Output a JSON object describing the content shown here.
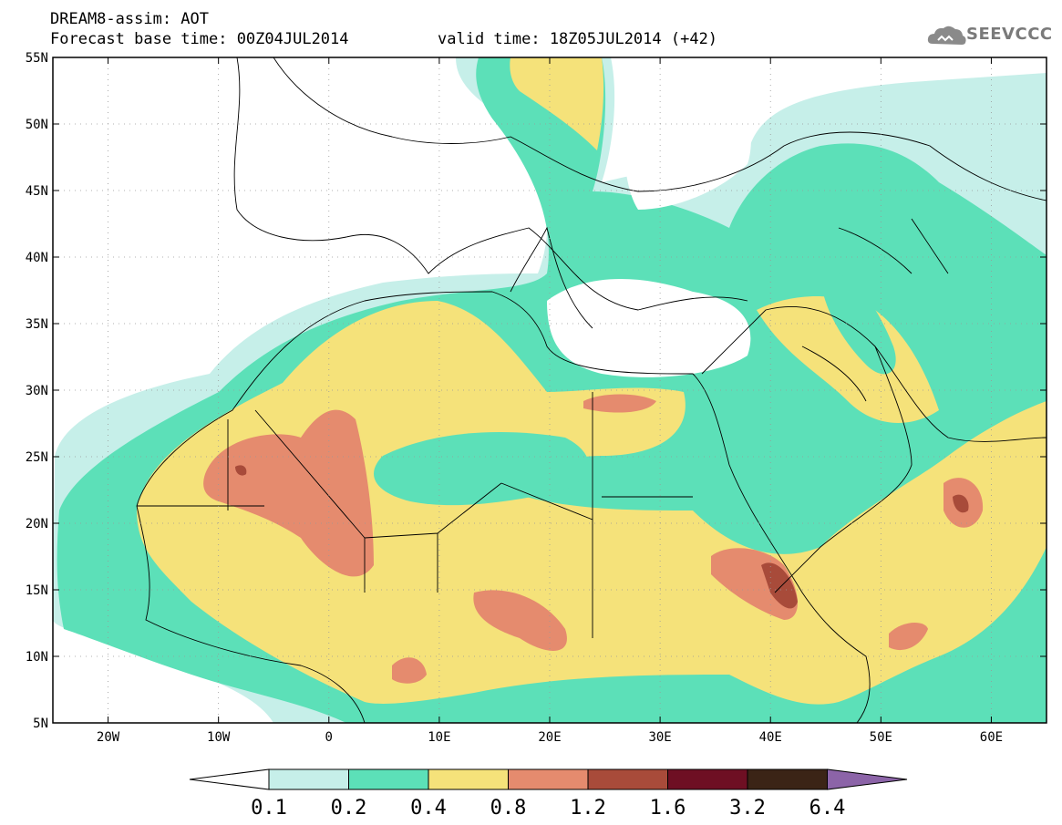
{
  "header": {
    "title_line": "DREAM8-assim: AOT",
    "base_time_line": "Forecast base time: 00Z04JUL2014",
    "valid_time_line": "valid time: 18Z05JUL2014 (+42)",
    "logo_text": "SEEVCCC"
  },
  "map": {
    "lon_range": [
      -25,
      65
    ],
    "lat_range": [
      5,
      55
    ],
    "lat_ticks": [
      {
        "value": 55,
        "label": "55N"
      },
      {
        "value": 50,
        "label": "50N"
      },
      {
        "value": 45,
        "label": "45N"
      },
      {
        "value": 40,
        "label": "40N"
      },
      {
        "value": 35,
        "label": "35N"
      },
      {
        "value": 30,
        "label": "30N"
      },
      {
        "value": 25,
        "label": "25N"
      },
      {
        "value": 20,
        "label": "20N"
      },
      {
        "value": 15,
        "label": "15N"
      },
      {
        "value": 10,
        "label": "10N"
      },
      {
        "value": 5,
        "label": "5N"
      }
    ],
    "lon_ticks": [
      {
        "value": -20,
        "label": "20W"
      },
      {
        "value": -10,
        "label": "10W"
      },
      {
        "value": 0,
        "label": "0"
      },
      {
        "value": 10,
        "label": "10E"
      },
      {
        "value": 20,
        "label": "20E"
      },
      {
        "value": 30,
        "label": "30E"
      },
      {
        "value": 40,
        "label": "40E"
      },
      {
        "value": 50,
        "label": "50E"
      },
      {
        "value": 60,
        "label": "60E"
      }
    ]
  },
  "colorbar": {
    "levels": [
      "0.1",
      "0.2",
      "0.4",
      "0.8",
      "1.2",
      "1.6",
      "3.2",
      "6.4"
    ],
    "colors": [
      "#c6efe9",
      "#5ce0b8",
      "#f5e27a",
      "#e58b6e",
      "#a84b3a",
      "#6e0f23",
      "#3b2416",
      "#8c64a8"
    ]
  }
}
